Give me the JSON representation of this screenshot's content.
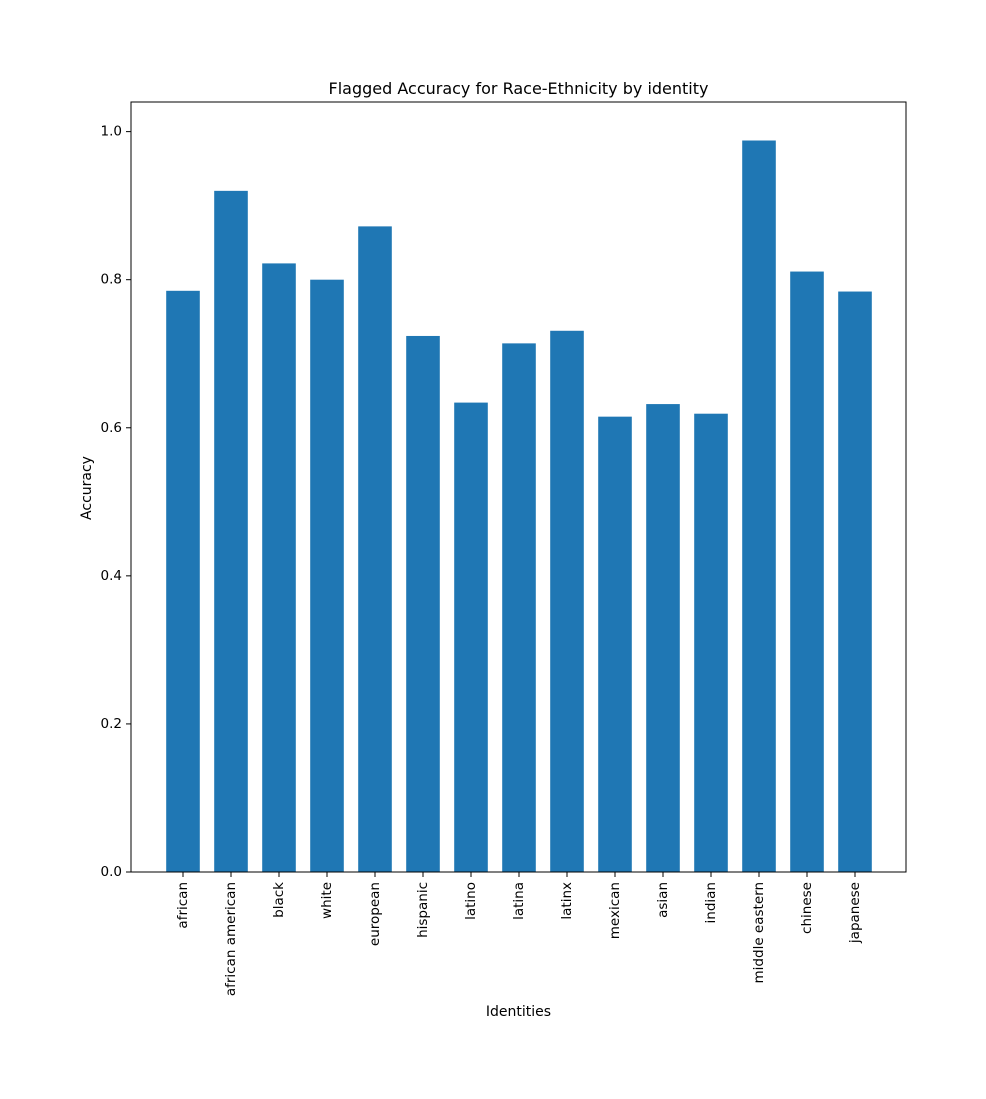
{
  "chart_data": {
    "type": "bar",
    "title": "Flagged Accuracy for Race-Ethnicity by identity",
    "xlabel": "Identities",
    "ylabel": "Accuracy",
    "ylim": [
      0,
      1.04
    ],
    "yticks": [
      "0.0",
      "0.2",
      "0.4",
      "0.6",
      "0.8",
      "1.0"
    ],
    "grid": false,
    "bar_color": "#1f77b4",
    "categories": [
      "african",
      "african american",
      "black",
      "white",
      "european",
      "hispanic",
      "latino",
      "latina",
      "latinx",
      "mexican",
      "asian",
      "indian",
      "middle eastern",
      "chinese",
      "japanese"
    ],
    "values": [
      0.785,
      0.92,
      0.822,
      0.8,
      0.872,
      0.724,
      0.634,
      0.714,
      0.731,
      0.615,
      0.632,
      0.619,
      0.988,
      0.811,
      0.784
    ]
  }
}
